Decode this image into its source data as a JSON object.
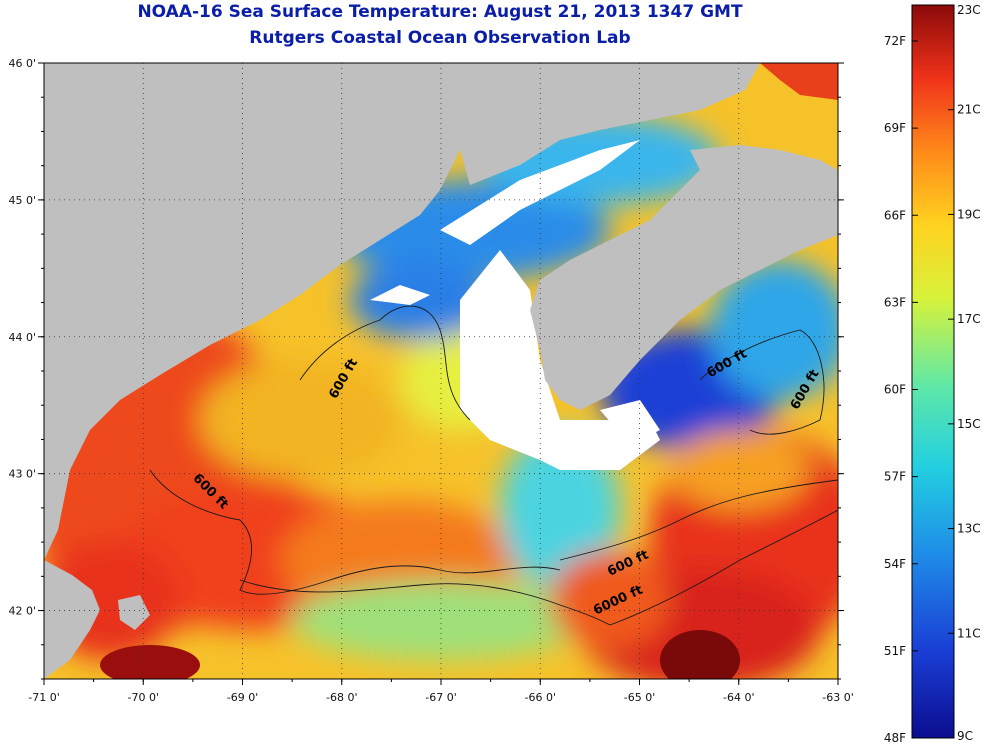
{
  "title": "NOAA-16 Sea Surface Temperature:  August 21, 2013 1347 GMT",
  "subtitle": "Rutgers Coastal Ocean Observation Lab",
  "colors": {
    "land": "#bfbfbf",
    "cloud": "#ffffff",
    "warm": "#d7301f",
    "hot": "#8b0000",
    "cold": "#1f3fbf",
    "mid": "#f5e050",
    "title": "#0a1ea8"
  },
  "map": {
    "lon_range": [
      -71,
      -63
    ],
    "lat_range": [
      41.5,
      46
    ],
    "lon_ticks": [
      "-71 0'",
      "-70 0'",
      "-69 0'",
      "-68 0'",
      "-67 0'",
      "-66 0'",
      "-65 0'",
      "-64 0'",
      "-63 0'"
    ],
    "lat_ticks": [
      "46 0'",
      "45 0'",
      "44 0'",
      "43 0'",
      "42 0'"
    ],
    "grid": "dotted",
    "contour_labels": [
      {
        "text": "600 ft",
        "lon": -67.95,
        "lat": 43.68
      },
      {
        "text": "600 ft",
        "lon": -69.35,
        "lat": 42.85
      },
      {
        "text": "600 ft",
        "lon": -64.1,
        "lat": 43.78
      },
      {
        "text": "600 ft",
        "lon": -63.3,
        "lat": 43.6
      },
      {
        "text": "600 ft",
        "lon": -65.1,
        "lat": 42.32
      },
      {
        "text": "6000 ft",
        "lon": -65.2,
        "lat": 42.05
      }
    ]
  },
  "colorbar": {
    "fahrenheit": [
      "72F",
      "69F",
      "66F",
      "63F",
      "60F",
      "57F",
      "54F",
      "51F",
      "48F"
    ],
    "celsius": [
      "23C",
      "21C",
      "19C",
      "17C",
      "15C",
      "13C",
      "11C",
      "9C"
    ],
    "stops": [
      "#0b0d8f",
      "#1a3fd6",
      "#1f8ce8",
      "#22cfe0",
      "#5fe8a8",
      "#d8f23a",
      "#ffd21f",
      "#ff8a1a",
      "#f0321a",
      "#8b0a0a"
    ]
  }
}
